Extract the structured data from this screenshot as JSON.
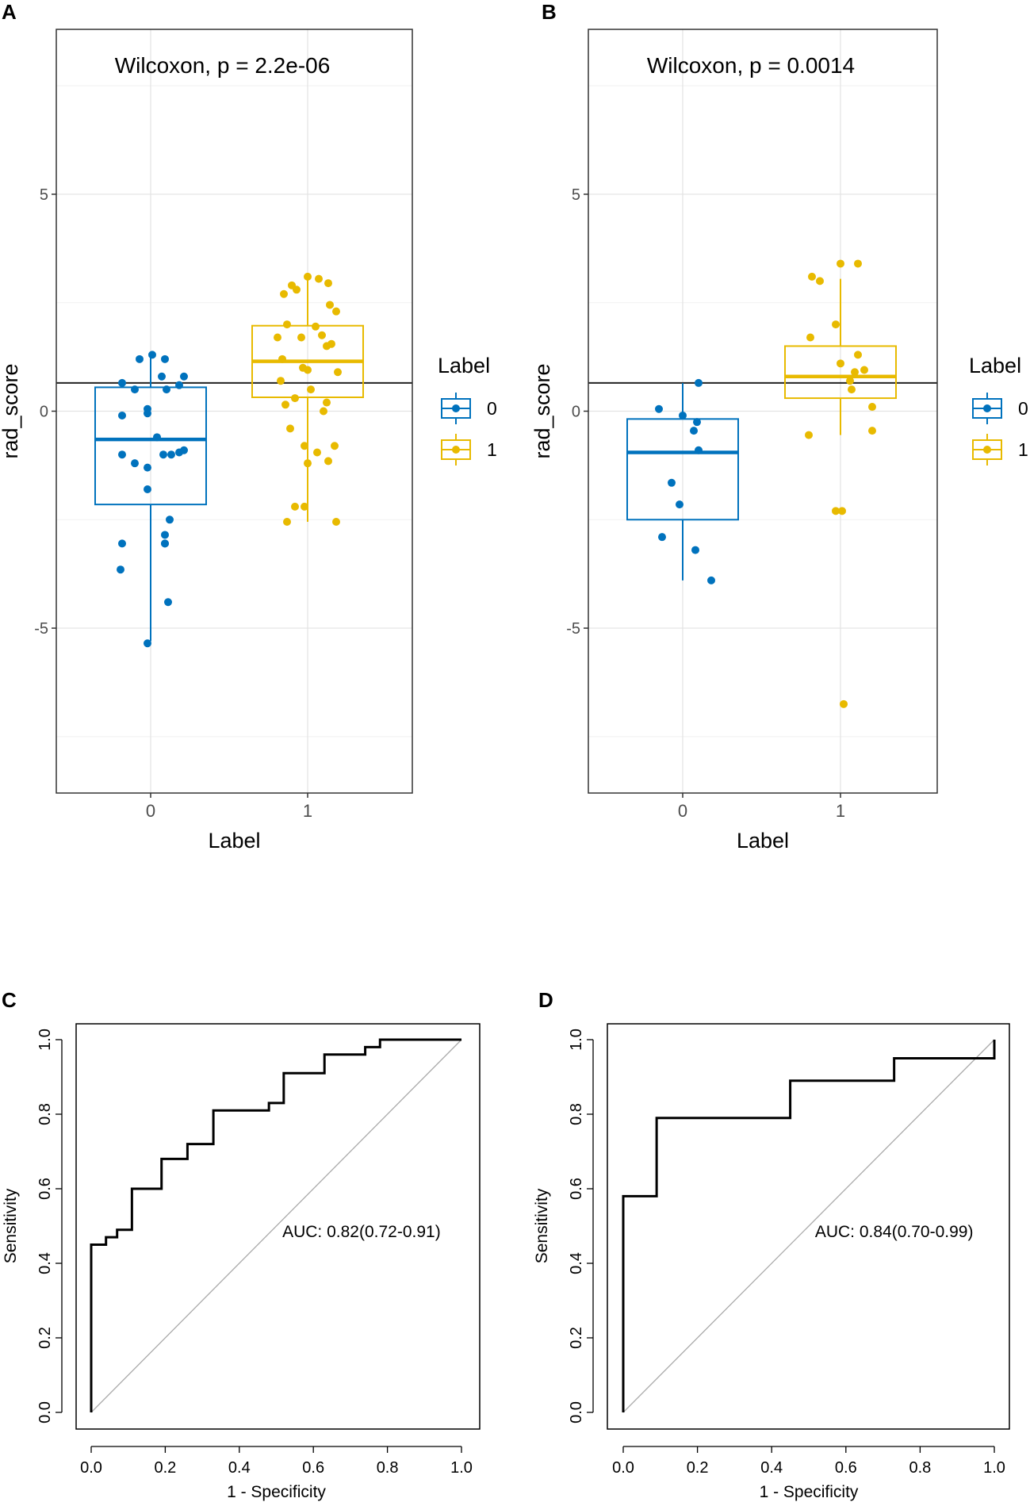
{
  "chart_data": [
    {
      "panel": "A",
      "type": "boxplot",
      "title": "Wilcoxon, p = 2.2e-06",
      "xlabel": "Label",
      "ylabel": "rad_score",
      "categories": [
        "0",
        "1"
      ],
      "ylim": [
        -8.8,
        8.8
      ],
      "yticks": [
        -5,
        0,
        5
      ],
      "ytick_labels": [
        "-5",
        "0",
        "5"
      ],
      "hline": 0.65,
      "legend": {
        "title": "Label",
        "entries": [
          "0",
          "1"
        ],
        "position": "right"
      },
      "colors": {
        "0": "#0072BD",
        "1": "#E8BA00"
      },
      "boxes": [
        {
          "category": "0",
          "q1": -2.15,
          "median": -0.65,
          "q3": 0.55,
          "whisker_low": -5.3,
          "whisker_high": 1.3
        },
        {
          "category": "1",
          "q1": 0.32,
          "median": 1.15,
          "q3": 1.97,
          "whisker_low": -2.55,
          "whisker_high": 3.1
        }
      ],
      "points": [
        {
          "category": "0",
          "jitter": [
            -0.07,
            0.01,
            0.09,
            -0.18,
            0.18,
            0.21,
            -0.18,
            -0.02,
            -0.02,
            0.21,
            0.18,
            0.04,
            0.13,
            0.08,
            -0.18,
            -0.1,
            -0.02,
            -0.18,
            0.12,
            0.09,
            -0.02,
            0.09,
            -0.19,
            0.09,
            0.11,
            0.07,
            -0.1,
            0.1,
            -0.02
          ],
          "values": [
            1.2,
            1.3,
            1.2,
            0.65,
            0.6,
            0.8,
            -0.1,
            0.05,
            -0.05,
            -0.9,
            -0.95,
            -0.6,
            -1.0,
            -1.0,
            -1.0,
            -1.2,
            -1.3,
            -3.05,
            -2.5,
            -2.85,
            -1.8,
            -3.05,
            -3.65,
            -3.05,
            -4.4,
            0.8,
            0.5,
            0.5,
            -5.35
          ]
        },
        {
          "category": "1",
          "jitter": [
            0.0,
            0.07,
            0.13,
            -0.1,
            -0.07,
            -0.15,
            0.14,
            0.18,
            0.05,
            -0.13,
            -0.19,
            -0.04,
            0.09,
            0.15,
            0.12,
            -0.16,
            -0.03,
            0.0,
            0.19,
            -0.17,
            0.02,
            0.12,
            -0.08,
            -0.14,
            0.1,
            0.17,
            -0.02,
            0.06,
            -0.11,
            0.0,
            0.13,
            -0.02,
            -0.08,
            -0.13,
            0.18
          ],
          "values": [
            3.1,
            3.05,
            2.95,
            2.9,
            2.8,
            2.7,
            2.45,
            2.3,
            1.95,
            2.0,
            1.7,
            1.7,
            1.75,
            1.55,
            1.5,
            1.2,
            1.0,
            0.95,
            0.9,
            0.7,
            0.5,
            0.2,
            0.3,
            0.15,
            0.0,
            -0.8,
            -0.8,
            -0.95,
            -0.4,
            -1.2,
            -1.15,
            -2.2,
            -2.2,
            -2.55,
            -2.55
          ]
        }
      ]
    },
    {
      "panel": "B",
      "type": "boxplot",
      "title": "Wilcoxon, p = 0.0014",
      "xlabel": "Label",
      "ylabel": "rad_score",
      "categories": [
        "0",
        "1"
      ],
      "ylim": [
        -8.8,
        8.8
      ],
      "yticks": [
        -5,
        0,
        5
      ],
      "ytick_labels": [
        "-5",
        "0",
        "5"
      ],
      "hline": 0.65,
      "legend": {
        "title": "Label",
        "entries": [
          "0",
          "1"
        ],
        "position": "right"
      },
      "colors": {
        "0": "#0072BD",
        "1": "#E8BA00"
      },
      "boxes": [
        {
          "category": "0",
          "q1": -2.5,
          "median": -0.95,
          "q3": -0.18,
          "whisker_low": -3.9,
          "whisker_high": 0.65
        },
        {
          "category": "1",
          "q1": 0.3,
          "median": 0.8,
          "q3": 1.5,
          "whisker_low": -0.55,
          "whisker_high": 3.05
        }
      ],
      "points": [
        {
          "category": "0",
          "jitter": [
            0.1,
            -0.15,
            0.0,
            0.09,
            0.07,
            0.1,
            -0.07,
            -0.02,
            -0.13,
            0.08,
            0.18
          ],
          "values": [
            0.65,
            0.05,
            -0.1,
            -0.25,
            -0.45,
            -0.9,
            -1.65,
            -2.15,
            -2.9,
            -3.2,
            -3.9
          ]
        },
        {
          "category": "1",
          "jitter": [
            0.0,
            0.11,
            -0.18,
            -0.13,
            -0.03,
            0.11,
            -0.19,
            0.0,
            0.15,
            0.09,
            0.06,
            0.2,
            0.07,
            -0.2,
            0.2,
            -0.03,
            0.01,
            0.02
          ],
          "values": [
            3.4,
            3.4,
            3.1,
            3.0,
            2.0,
            1.3,
            1.7,
            1.1,
            0.95,
            0.9,
            0.7,
            0.1,
            0.5,
            -0.55,
            -0.45,
            -2.3,
            -2.3,
            -6.75
          ]
        }
      ]
    },
    {
      "panel": "C",
      "type": "line",
      "subtype": "roc",
      "xlabel": "1 - Specificity",
      "ylabel": "Sensitivity",
      "xlim": [
        0,
        1
      ],
      "ylim": [
        0,
        1
      ],
      "xticks": [
        "0.0",
        "0.2",
        "0.4",
        "0.6",
        "0.8",
        "1.0"
      ],
      "yticks": [
        "0.0",
        "0.2",
        "0.4",
        "0.6",
        "0.8",
        "1.0"
      ],
      "annotation": "AUC: 0.82(0.72-0.91)",
      "diagonal": true,
      "x": [
        0.0,
        0.0,
        0.04,
        0.04,
        0.07,
        0.07,
        0.11,
        0.11,
        0.19,
        0.19,
        0.26,
        0.26,
        0.33,
        0.33,
        0.48,
        0.48,
        0.52,
        0.52,
        0.63,
        0.63,
        0.74,
        0.74,
        0.78,
        0.78,
        1.0
      ],
      "y": [
        0.0,
        0.45,
        0.45,
        0.47,
        0.47,
        0.49,
        0.49,
        0.6,
        0.6,
        0.68,
        0.68,
        0.72,
        0.72,
        0.81,
        0.81,
        0.83,
        0.83,
        0.91,
        0.91,
        0.96,
        0.96,
        0.98,
        0.98,
        1.0,
        1.0
      ]
    },
    {
      "panel": "D",
      "type": "line",
      "subtype": "roc",
      "xlabel": "1 - Specificity",
      "ylabel": "Sensitivity",
      "xlim": [
        0,
        1
      ],
      "ylim": [
        0,
        1
      ],
      "xticks": [
        "0.0",
        "0.2",
        "0.4",
        "0.6",
        "0.8",
        "1.0"
      ],
      "yticks": [
        "0.0",
        "0.2",
        "0.4",
        "0.6",
        "0.8",
        "1.0"
      ],
      "annotation": "AUC: 0.84(0.70-0.99)",
      "diagonal": true,
      "x": [
        0.0,
        0.0,
        0.09,
        0.09,
        0.45,
        0.45,
        0.73,
        0.73,
        1.0,
        1.0
      ],
      "y": [
        0.0,
        0.58,
        0.58,
        0.79,
        0.79,
        0.89,
        0.89,
        0.95,
        0.95,
        1.0
      ]
    }
  ]
}
